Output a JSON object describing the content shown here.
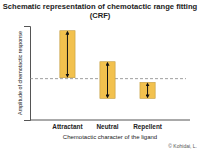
{
  "chart_data": {
    "type": "bar",
    "title": "Schematic representation of chemotactic range fitting",
    "subtitle": "(CRF)",
    "x_label": "Chemotactic character of the ligand",
    "y_label": "Amplitude of chemotactic response",
    "categories": [
      "Attractant",
      "Neutral",
      "Repellent"
    ],
    "values": [
      [
        4.5,
        9.5
      ],
      [
        2.3,
        6.2
      ],
      [
        2.3,
        4.0
      ]
    ],
    "color": "#f2c14e",
    "baseline": 4.4,
    "line_style": "dashed",
    "ylim": [
      0,
      10
    ],
    "yticks": [],
    "tick_labels": "x",
    "annotation": "© Kohidai, L."
  }
}
